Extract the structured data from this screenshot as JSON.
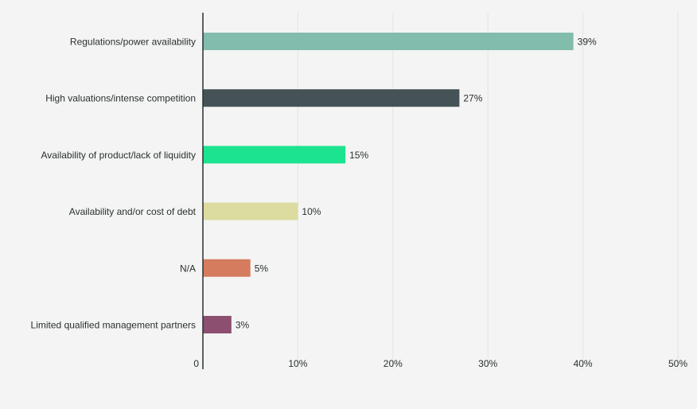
{
  "chart_data": {
    "type": "bar",
    "orientation": "horizontal",
    "categories": [
      "Regulations/power availability",
      "High valuations/intense competition",
      "Availability of product/lack of liquidity",
      "Availability and/or cost of debt",
      "N/A",
      "Limited qualified management partners"
    ],
    "values": [
      39,
      27,
      15,
      10,
      5,
      3
    ],
    "value_labels": [
      "39%",
      "27%",
      "15%",
      "10%",
      "5%",
      "3%"
    ],
    "colors": [
      "#82bcac",
      "#455357",
      "#1be38f",
      "#dcdba0",
      "#d57b5e",
      "#8c4f70"
    ],
    "xlim": [
      0,
      50
    ],
    "x_ticks": [
      0,
      10,
      20,
      30,
      40,
      50
    ],
    "x_tick_labels": [
      "0",
      "10%",
      "20%",
      "30%",
      "40%",
      "50%"
    ],
    "grid": "vertical",
    "legend": "none",
    "title": "",
    "xlabel": "",
    "ylabel": ""
  }
}
